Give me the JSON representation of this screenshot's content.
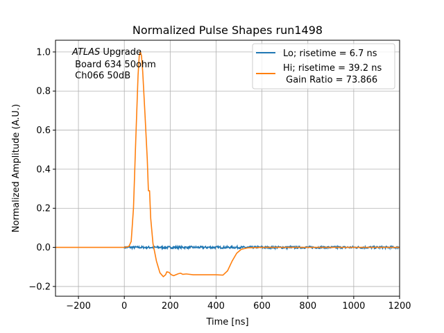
{
  "chart_data": {
    "type": "line",
    "title": "Normalized Pulse Shapes run1498",
    "xlabel": "Time [ns]",
    "ylabel": "Normalized Amplitude (A.U.)",
    "xlim": [
      -300,
      1200
    ],
    "ylim": [
      -0.25,
      1.06
    ],
    "x_ticks": [
      -200,
      0,
      200,
      400,
      600,
      800,
      1000,
      1200
    ],
    "x_tick_labels": [
      "−200",
      "0",
      "200",
      "400",
      "600",
      "800",
      "1000",
      "1200"
    ],
    "y_ticks": [
      -0.2,
      0.0,
      0.2,
      0.4,
      0.6,
      0.8,
      1.0
    ],
    "y_tick_labels": [
      "−0.2",
      "0.0",
      "0.2",
      "0.4",
      "0.6",
      "0.8",
      "1.0"
    ],
    "grid": true,
    "legend_position": "top-right",
    "annotation": {
      "atlas": "ATLAS",
      "line1_rest": " Upgrade",
      "line2": " Board 634 50ohm",
      "line3": " Ch066 50dB"
    },
    "series": [
      {
        "name": "Lo; risetime = 6.7 ns",
        "color": "#1f77b4",
        "x_start": 0,
        "x_end": 1200,
        "level": 0.0,
        "noise": 0.006
      },
      {
        "name": "Hi; risetime = 39.2 ns",
        "name_line2": " Gain Ratio = 73.866",
        "color": "#ff7f0e",
        "points": [
          [
            -300,
            0.0
          ],
          [
            -100,
            0.0
          ],
          [
            0,
            0.0
          ],
          [
            20,
            0.005
          ],
          [
            30,
            0.03
          ],
          [
            40,
            0.2
          ],
          [
            50,
            0.55
          ],
          [
            60,
            0.88
          ],
          [
            65,
            0.98
          ],
          [
            70,
            1.0
          ],
          [
            75,
            0.98
          ],
          [
            80,
            0.9
          ],
          [
            90,
            0.68
          ],
          [
            100,
            0.45
          ],
          [
            105,
            0.29
          ],
          [
            110,
            0.29
          ],
          [
            115,
            0.15
          ],
          [
            125,
            0.02
          ],
          [
            140,
            -0.07
          ],
          [
            155,
            -0.13
          ],
          [
            170,
            -0.15
          ],
          [
            180,
            -0.14
          ],
          [
            185,
            -0.125
          ],
          [
            195,
            -0.128
          ],
          [
            205,
            -0.14
          ],
          [
            215,
            -0.145
          ],
          [
            225,
            -0.14
          ],
          [
            235,
            -0.135
          ],
          [
            245,
            -0.132
          ],
          [
            255,
            -0.138
          ],
          [
            270,
            -0.136
          ],
          [
            300,
            -0.14
          ],
          [
            350,
            -0.14
          ],
          [
            400,
            -0.14
          ],
          [
            430,
            -0.142
          ],
          [
            450,
            -0.12
          ],
          [
            470,
            -0.07
          ],
          [
            490,
            -0.03
          ],
          [
            510,
            -0.01
          ],
          [
            540,
            -0.002
          ],
          [
            600,
            0.0
          ],
          [
            800,
            0.0
          ],
          [
            1000,
            0.0
          ],
          [
            1200,
            0.0
          ]
        ]
      }
    ]
  }
}
